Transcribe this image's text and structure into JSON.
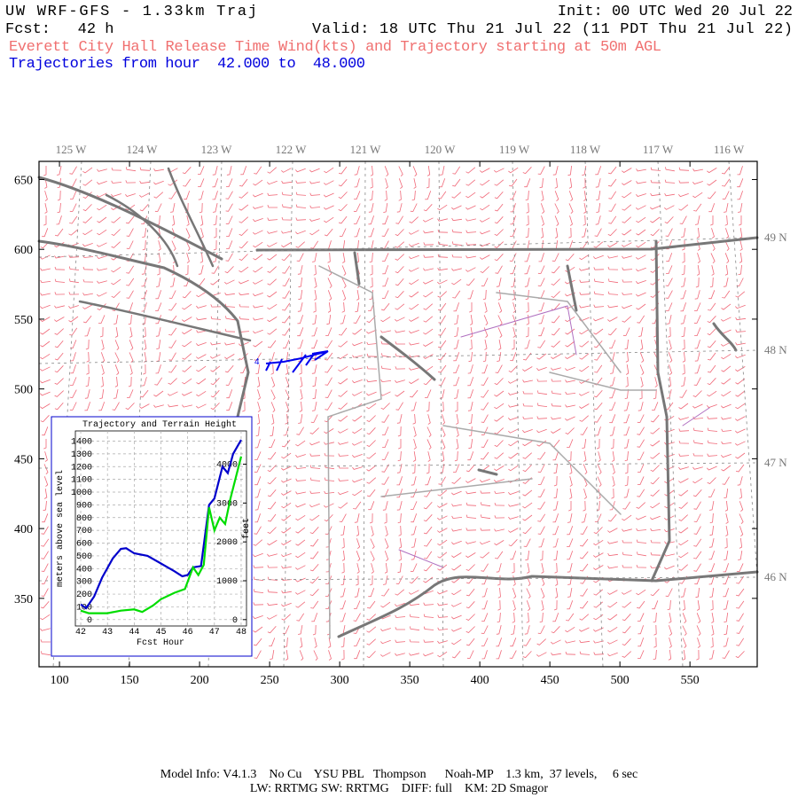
{
  "header": {
    "title": "UW WRF-GFS - 1.33km Traj",
    "init": "Init: 00 UTC Wed 20 Jul 22",
    "fcst": "Fcst:   42 h",
    "valid": "Valid: 18 UTC Thu 21 Jul 22 (11 PDT Thu 21 Jul 22)",
    "subtitle": "Everett City Hall Release Time Wind(kts) and Trajectory starting at 50m AGL",
    "traj_range": "Trajectories from hour  42.000 to  48.000"
  },
  "map": {
    "xlim": [
      85.4,
      598
    ],
    "ylim": [
      301,
      663
    ],
    "xticks": [
      100,
      150,
      200,
      250,
      300,
      350,
      400,
      450,
      500,
      550
    ],
    "yticks": [
      350,
      400,
      450,
      500,
      550,
      600,
      650
    ],
    "lon_labels": [
      "125 W",
      "124 W",
      "123 W",
      "122 W",
      "121 W",
      "120 W",
      "119 W",
      "118 W",
      "117 W",
      "116 W"
    ],
    "lat_labels": [
      "49 N",
      "48 N",
      "47 N",
      "46 N"
    ],
    "traj_label": "4"
  },
  "chart_data": {
    "type": "line",
    "title": "Trajectory and Terrain Height",
    "x_label": "Fcst Hour",
    "y_label": "meters above sea level",
    "y2_label": "feet",
    "xlim": [
      41.8,
      48.2
    ],
    "xticks": [
      42,
      43,
      44,
      45,
      46,
      47,
      48
    ],
    "ylim": [
      -50,
      1480
    ],
    "yticks": [
      0,
      100,
      200,
      300,
      400,
      500,
      600,
      700,
      800,
      900,
      1000,
      1100,
      1200,
      1300,
      1400
    ],
    "y2lim": [
      -164,
      4856
    ],
    "y2ticks": [
      0,
      1000,
      2000,
      3000,
      4000
    ],
    "grid": true,
    "series": [
      {
        "name": "Trajectory",
        "color": "#0000cc",
        "x": [
          42,
          42.2,
          42.5,
          42.8,
          43.2,
          43.5,
          43.7,
          44,
          44.5,
          45,
          45.5,
          45.8,
          46,
          46.2,
          46.5,
          46.8,
          47,
          47.3,
          47.5,
          47.7,
          48
        ],
        "values": [
          120,
          90,
          180,
          330,
          480,
          555,
          560,
          520,
          500,
          440,
          380,
          340,
          350,
          410,
          420,
          900,
          950,
          1200,
          1150,
          1300,
          1410
        ]
      },
      {
        "name": "Terrain",
        "color": "#00dd00",
        "x": [
          42,
          42.3,
          43,
          43.5,
          44,
          44.3,
          44.7,
          45,
          45.5,
          45.9,
          46.2,
          46.4,
          46.6,
          46.8,
          47,
          47.2,
          47.4,
          47.6,
          48
        ],
        "values": [
          70,
          50,
          50,
          70,
          80,
          60,
          110,
          160,
          210,
          240,
          410,
          350,
          430,
          880,
          700,
          800,
          750,
          950,
          1280
        ]
      }
    ]
  },
  "footer": {
    "line1": "Model Info: V4.1.3    No Cu    YSU PBL   Thompson      Noah-MP    1.3 km,  37 levels,     6 sec",
    "line2": "LW: RRTMG SW: RRTMG    DIFF: full    KM: 2D Smagor"
  }
}
